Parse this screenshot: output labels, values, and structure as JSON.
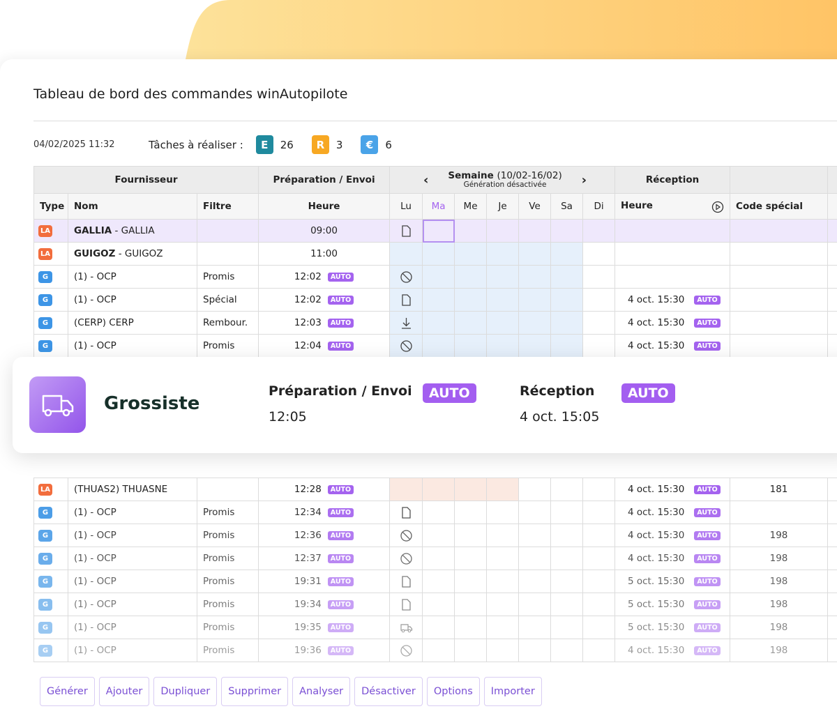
{
  "title": "Tableau de bord des commandes winAutopilote",
  "datetime": "04/02/2025 11:32",
  "tasks_label": "Tâches à réaliser :",
  "tasks": [
    {
      "badge": "E",
      "count": 26,
      "color": "#1f8a9e"
    },
    {
      "badge": "R",
      "count": 3,
      "color": "#f7a823"
    },
    {
      "badge": "€",
      "count": 6,
      "color": "#4aa3e8"
    }
  ],
  "table": {
    "groups": {
      "supplier": "Fournisseur",
      "prep": "Préparation / Envoi",
      "week": "Semaine",
      "week_range": "(10/02-16/02)",
      "week_note": "Génération désactivée",
      "reception": "Réception"
    },
    "columns": [
      "Type",
      "Nom",
      "Filtre",
      "Heure",
      "Lu",
      "Ma",
      "Me",
      "Je",
      "Ve",
      "Sa",
      "Di",
      "Heure",
      "Code spécial"
    ],
    "badge_colors": {
      "LA": "#f26d3d",
      "G": "#3d95e6"
    },
    "auto_label": "AUTO",
    "rows": [
      {
        "type": "LA",
        "name_bold": "GALLIA",
        "name": " - GALLIA",
        "time": "09:00",
        "icon": "doc"
      },
      {
        "type": "LA",
        "name_bold": "GUIGOZ",
        "name": " - GUIGOZ",
        "time": "11:00"
      },
      {
        "type": "G",
        "name": "(1) - OCP",
        "filter": "Promis",
        "time": "12:02",
        "auto": true,
        "icon": "ban"
      },
      {
        "type": "G",
        "name": "(1) - OCP",
        "filter": "Spécial",
        "time": "12:02",
        "auto": true,
        "icon": "doc",
        "reception": "4 oct. 15:30",
        "reception_auto": true
      },
      {
        "type": "G",
        "name": "(CERP) CERP",
        "filter": "Rembour.",
        "time": "12:03",
        "auto": true,
        "icon": "download",
        "reception": "4 oct. 15:30",
        "reception_auto": true
      },
      {
        "type": "G",
        "name": "(1) - OCP",
        "filter": "Promis",
        "time": "12:04",
        "auto": true,
        "icon": "ban",
        "reception": "4 oct. 15:30",
        "reception_auto": true
      }
    ],
    "rows_after": [
      {
        "type": "LA",
        "name": "(THUAS2) THUASNE",
        "time": "12:28",
        "auto": true,
        "reception": "4 oct. 15:30",
        "reception_auto": true,
        "code": 181
      },
      {
        "type": "G",
        "name": "(1) - OCP",
        "filter": "Promis",
        "time": "12:34",
        "auto": true,
        "icon": "doc",
        "reception": "4 oct. 15:30",
        "reception_auto": true
      },
      {
        "type": "G",
        "name": "(1) - OCP",
        "filter": "Promis",
        "time": "12:36",
        "auto": true,
        "icon": "ban",
        "reception": "4 oct. 15:30",
        "reception_auto": true,
        "code": 198
      },
      {
        "type": "G",
        "name": "(1) - OCP",
        "filter": "Promis",
        "time": "12:37",
        "auto": true,
        "icon": "ban",
        "reception": "4 oct. 15:30",
        "reception_auto": true,
        "code": 198
      },
      {
        "type": "G",
        "name": "(1) - OCP",
        "filter": "Promis",
        "time": "19:31",
        "auto": true,
        "icon": "doc",
        "reception": "5 oct. 15:30",
        "reception_auto": true,
        "code": 198
      },
      {
        "type": "G",
        "name": "(1) - OCP",
        "filter": "Promis",
        "time": "19:34",
        "auto": true,
        "icon": "doc",
        "reception": "5 oct. 15:30",
        "reception_auto": true,
        "code": 198
      },
      {
        "type": "G",
        "name": "(1) - OCP",
        "filter": "Promis",
        "time": "19:35",
        "auto": true,
        "icon": "truck",
        "reception": "5 oct. 15:30",
        "reception_auto": true,
        "code": 198
      },
      {
        "type": "G",
        "name": "(1) - OCP",
        "filter": "Promis",
        "time": "19:36",
        "auto": true,
        "icon": "ban",
        "reception": "4 oct. 15:30",
        "reception_auto": true,
        "code": 198
      }
    ]
  },
  "card": {
    "title": "Grossiste",
    "prep_label": "Préparation / Envoi",
    "prep_time": "12:05",
    "prep_badge": "AUTO",
    "reception_label": "Réception",
    "reception_time": "4 oct. 15:05",
    "reception_badge": "AUTO"
  },
  "buttons": [
    "Générer",
    "Ajouter",
    "Dupliquer",
    "Supprimer",
    "Analyser",
    "Désactiver",
    "Options",
    "Importer"
  ]
}
